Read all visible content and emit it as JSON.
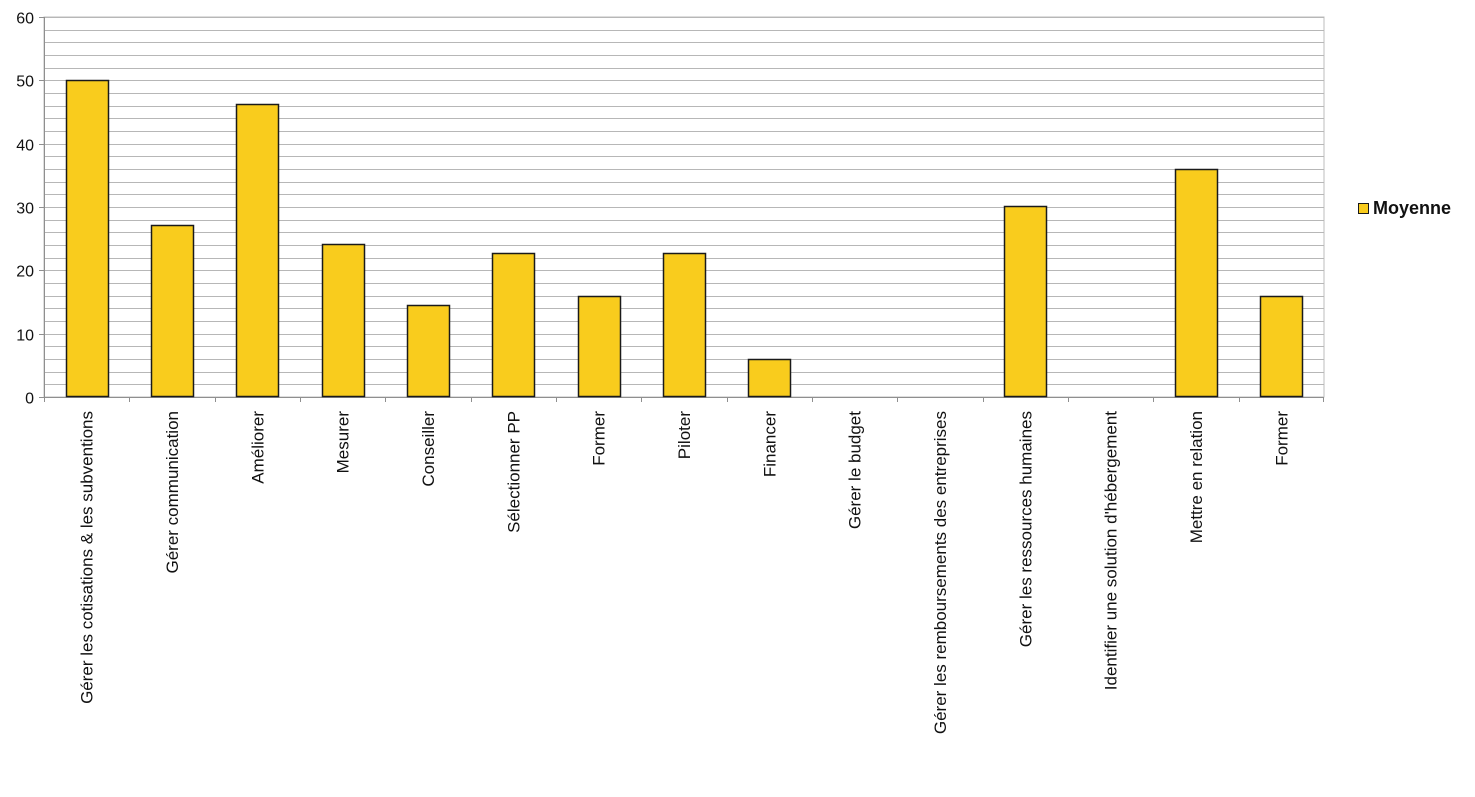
{
  "chart_data": {
    "type": "bar",
    "categories": [
      "Gérer les cotisations & les subventions",
      "Gérer communication",
      "Améliorer",
      "Mesurer",
      "Conseiller",
      "Sélectionner PP",
      "Former",
      "Piloter",
      "Financer",
      "Gérer le budget",
      "Gérer les remboursements des entreprises",
      "Gérer les ressources humaines",
      "Identifier une solution d'hébergement",
      "Mettre en relation",
      "Former"
    ],
    "series": [
      {
        "name": "Moyenne",
        "values": [
          50,
          27.2,
          46.2,
          24.2,
          14.6,
          22.7,
          16,
          22.7,
          6,
          0,
          0,
          30.2,
          0,
          36,
          16
        ],
        "color": "#F9CC1D"
      }
    ],
    "ylim": [
      0,
      60
    ],
    "yticks": [
      0,
      10,
      20,
      30,
      40,
      50,
      60
    ],
    "grid": true,
    "grid_color": "#b7b7b7",
    "legend_position": "right",
    "bar_border_color": "#1a1a1a"
  }
}
